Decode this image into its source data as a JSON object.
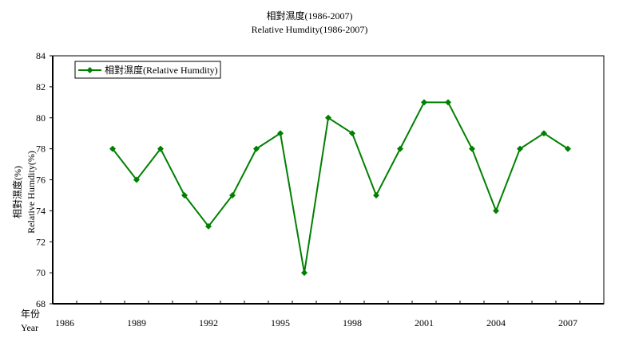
{
  "chart_data": {
    "type": "line",
    "title": "相對濕度(1986-2007)",
    "subtitle": "Relative Humdity(1986-2007)",
    "ylabel": [
      "相對濕度(%)",
      "Relative Humdity(%)"
    ],
    "xlabel": [
      "年份",
      "Year"
    ],
    "ylim": [
      68,
      84
    ],
    "yticks": [
      68,
      70,
      72,
      74,
      76,
      78,
      80,
      82,
      84
    ],
    "xlim": [
      1986,
      2008
    ],
    "xtick_labels": [
      "1986",
      "1989",
      "1992",
      "1995",
      "1998",
      "2001",
      "2004",
      "2007"
    ],
    "grid": false,
    "legend_position": "top-left",
    "series": [
      {
        "name": "相對濕度(Relative Humdity)",
        "color": "#008000",
        "marker": "diamond",
        "x": [
          1988,
          1989,
          1990,
          1991,
          1992,
          1993,
          1994,
          1995,
          1996,
          1997,
          1998,
          1999,
          2000,
          2001,
          2002,
          2003,
          2004,
          2005,
          2006,
          2007
        ],
        "values": [
          78,
          76,
          78,
          75,
          73,
          75,
          78,
          79,
          70,
          80,
          79,
          75,
          78,
          81,
          81,
          78,
          74,
          78,
          79,
          78
        ]
      }
    ]
  }
}
